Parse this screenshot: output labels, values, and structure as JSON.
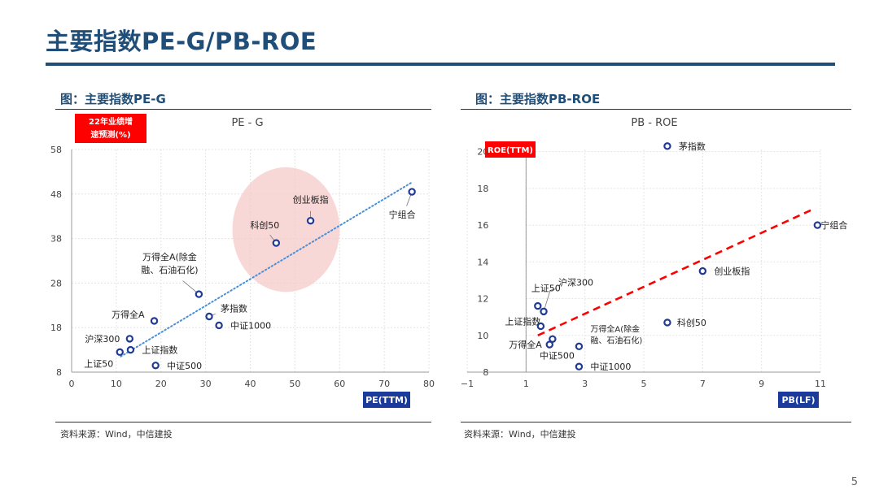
{
  "page": {
    "title": "主要指数PE-G/PB-ROE",
    "page_number": "5"
  },
  "left_panel": {
    "figure_title": "图：主要指数PE-G",
    "source": "资料来源：Wind，中信建投"
  },
  "right_panel": {
    "figure_title": "图：主要指数PB-ROE",
    "source": "资料来源：Wind，中信建投"
  },
  "colors": {
    "title": "#1f4e79",
    "marker": "#1f3a93",
    "badge_red": "#ff0000",
    "badge_blue": "#1a3a9c",
    "trend_pe": "#4a90d9",
    "trend_pb": "#ff0000",
    "highlight": "#f6c9c9"
  },
  "chart_data": [
    {
      "type": "scatter",
      "title": "PE - G",
      "xlabel": "PE(TTM)",
      "ylabel": "22年业绩增速预测(%)",
      "xlim": [
        0,
        80
      ],
      "ylim": [
        8,
        58
      ],
      "xticks": [
        0,
        10,
        20,
        30,
        40,
        50,
        60,
        70,
        80
      ],
      "yticks": [
        8,
        18,
        28,
        38,
        48,
        58
      ],
      "grid": true,
      "trendline": {
        "style": "dotted",
        "from": [
          11,
          11.5
        ],
        "to": [
          76,
          50.5
        ]
      },
      "highlight_ellipse": {
        "cx": 48,
        "cy": 40,
        "rx": 12,
        "ry": 14
      },
      "points": [
        {
          "name": "宁组合",
          "x": 76.2,
          "y": 48.5
        },
        {
          "name": "创业板指",
          "x": 53.5,
          "y": 42
        },
        {
          "name": "科创50",
          "x": 45.8,
          "y": 37
        },
        {
          "name": "万得全A(除金融、石油石化)",
          "x": 28.5,
          "y": 25.5
        },
        {
          "name": "茅指数",
          "x": 30.8,
          "y": 20.5
        },
        {
          "name": "中证1000",
          "x": 33,
          "y": 18.5
        },
        {
          "name": "万得全A",
          "x": 18.5,
          "y": 19.5
        },
        {
          "name": "沪深300",
          "x": 13,
          "y": 15.5
        },
        {
          "name": "上证指数",
          "x": 13.2,
          "y": 13
        },
        {
          "name": "上证50",
          "x": 10.8,
          "y": 12.5
        },
        {
          "name": "中证500",
          "x": 18.8,
          "y": 9.5
        }
      ]
    },
    {
      "type": "scatter",
      "title": "PB - ROE",
      "xlabel": "PB(LF)",
      "ylabel": "ROE(TTM)",
      "xlim": [
        -1,
        11
      ],
      "ylim": [
        8,
        21
      ],
      "xticks": [
        -1,
        1,
        3,
        5,
        7,
        9,
        11
      ],
      "yticks": [
        8,
        10,
        12,
        14,
        16,
        18,
        20
      ],
      "grid": true,
      "trendline": {
        "style": "dashed",
        "from": [
          1.4,
          10
        ],
        "to": [
          10.8,
          16.9
        ]
      },
      "points": [
        {
          "name": "茅指数",
          "x": 5.8,
          "y": 20.3
        },
        {
          "name": "宁组合",
          "x": 10.9,
          "y": 16
        },
        {
          "name": "创业板指",
          "x": 7,
          "y": 13.5
        },
        {
          "name": "科创50",
          "x": 5.8,
          "y": 10.7
        },
        {
          "name": "沪深300",
          "x": 1.6,
          "y": 11.3
        },
        {
          "name": "上证50",
          "x": 1.4,
          "y": 11.6
        },
        {
          "name": "上证指数",
          "x": 1.5,
          "y": 10.5
        },
        {
          "name": "万得全A(除金融、石油石化)",
          "x": 2.8,
          "y": 9.4
        },
        {
          "name": "万得全A",
          "x": 1.8,
          "y": 9.5
        },
        {
          "name": "中证500",
          "x": 1.9,
          "y": 9.8
        },
        {
          "name": "中证1000",
          "x": 2.8,
          "y": 8.3
        }
      ]
    }
  ]
}
